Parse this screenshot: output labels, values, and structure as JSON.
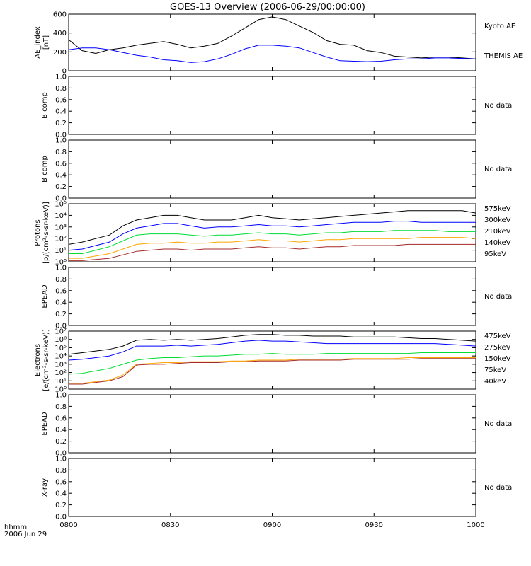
{
  "title": "GOES-13 Overview (2006-06-29/00:00:00)",
  "footer": {
    "line1": "hhmm",
    "line2": "2006 Jun 29"
  },
  "chart_data": [
    {
      "type": "line",
      "panel": "ae",
      "ylabel": [
        "AE_index",
        "[nT]"
      ],
      "yticks": [
        "0",
        "200",
        "400",
        "600"
      ],
      "ylim": [
        0,
        620
      ],
      "x": [
        "0800",
        "0804",
        "0808",
        "0812",
        "0816",
        "0820",
        "0824",
        "0828",
        "0832",
        "0836",
        "0840",
        "0844",
        "0848",
        "0852",
        "0856",
        "0900",
        "0904",
        "0908",
        "0912",
        "0916",
        "0920",
        "0924",
        "0928",
        "0932",
        "0936",
        "0940",
        "0944",
        "0948",
        "0952",
        "0956",
        "1000"
      ],
      "series": [
        {
          "name": "Kyoto AE",
          "color": "#000000",
          "values": [
            340,
            220,
            190,
            230,
            250,
            280,
            300,
            320,
            290,
            250,
            270,
            300,
            380,
            470,
            560,
            590,
            560,
            490,
            420,
            330,
            290,
            280,
            220,
            200,
            160,
            150,
            140,
            150,
            150,
            140,
            130
          ]
        },
        {
          "name": "THEMIS AE",
          "color": "#0000ff",
          "values": [
            230,
            250,
            250,
            230,
            200,
            170,
            150,
            120,
            110,
            90,
            100,
            130,
            180,
            240,
            280,
            280,
            270,
            250,
            200,
            150,
            110,
            105,
            100,
            105,
            120,
            130,
            130,
            140,
            140,
            135,
            130
          ]
        }
      ]
    },
    {
      "type": "line",
      "panel": "bcomp-1",
      "ylabel": [
        "B comp"
      ],
      "yticks": [
        "0.0",
        "0.2",
        "0.4",
        "0.6",
        "0.8",
        "1.0"
      ],
      "ylim": [
        0,
        1
      ],
      "note": "No data"
    },
    {
      "type": "line",
      "panel": "bcomp-2",
      "ylabel": [
        "B comp"
      ],
      "yticks": [
        "0.0",
        "0.2",
        "0.4",
        "0.6",
        "0.8",
        "1.0"
      ],
      "ylim": [
        0,
        1
      ],
      "note": "No data"
    },
    {
      "type": "line",
      "panel": "protons",
      "log": true,
      "ylabel": [
        "Protons",
        "[p/(cm²-s-sr-keV)]"
      ],
      "yticks": [
        "10⁰",
        "10¹",
        "10²",
        "10³",
        "10⁴",
        "10⁵"
      ],
      "ylim_log10": [
        0,
        5
      ],
      "x": [
        "0800",
        "0804",
        "0808",
        "0812",
        "0816",
        "0820",
        "0824",
        "0828",
        "0832",
        "0836",
        "0840",
        "0844",
        "0848",
        "0852",
        "0856",
        "0900",
        "0904",
        "0908",
        "0912",
        "0916",
        "0920",
        "0924",
        "0928",
        "0932",
        "0936",
        "0940",
        "0944",
        "0948",
        "0952",
        "0956",
        "1000"
      ],
      "series": [
        {
          "name": "575keV",
          "color": "#a52a2a",
          "values": [
            0.1,
            0.1,
            0.2,
            0.3,
            0.6,
            0.9,
            1.0,
            1.1,
            1.1,
            1.0,
            1.1,
            1.1,
            1.1,
            1.2,
            1.3,
            1.2,
            1.2,
            1.1,
            1.2,
            1.3,
            1.3,
            1.4,
            1.4,
            1.4,
            1.4,
            1.5,
            1.5,
            1.5,
            1.5,
            1.5,
            1.5
          ]
        },
        {
          "name": "300keV",
          "color": "#ffa500",
          "values": [
            0.3,
            0.3,
            0.5,
            0.7,
            1.1,
            1.5,
            1.6,
            1.6,
            1.7,
            1.6,
            1.6,
            1.7,
            1.7,
            1.8,
            1.9,
            1.8,
            1.8,
            1.7,
            1.8,
            1.9,
            1.9,
            2.0,
            2.0,
            2.0,
            2.0,
            2.0,
            2.1,
            2.1,
            2.1,
            2.1,
            2.0
          ]
        },
        {
          "name": "210keV",
          "color": "#00dd33",
          "values": [
            0.7,
            0.7,
            1.0,
            1.3,
            1.8,
            2.3,
            2.4,
            2.4,
            2.4,
            2.3,
            2.2,
            2.3,
            2.3,
            2.4,
            2.5,
            2.4,
            2.4,
            2.3,
            2.4,
            2.5,
            2.5,
            2.6,
            2.6,
            2.6,
            2.7,
            2.7,
            2.7,
            2.7,
            2.6,
            2.6,
            2.6
          ]
        },
        {
          "name": "140keV",
          "color": "#0000ff",
          "values": [
            1.0,
            1.1,
            1.4,
            1.7,
            2.4,
            2.9,
            3.1,
            3.3,
            3.3,
            3.1,
            2.9,
            3.0,
            3.0,
            3.1,
            3.2,
            3.1,
            3.1,
            3.0,
            3.1,
            3.2,
            3.3,
            3.4,
            3.4,
            3.4,
            3.5,
            3.5,
            3.4,
            3.4,
            3.4,
            3.4,
            3.4
          ]
        },
        {
          "name": "95keV",
          "color": "#000000",
          "values": [
            1.5,
            1.7,
            2.0,
            2.3,
            3.1,
            3.6,
            3.8,
            4.0,
            4.0,
            3.8,
            3.6,
            3.6,
            3.6,
            3.8,
            4.0,
            3.8,
            3.7,
            3.6,
            3.7,
            3.8,
            3.9,
            4.0,
            4.1,
            4.2,
            4.3,
            4.4,
            4.4,
            4.4,
            4.4,
            4.4,
            4.2
          ]
        }
      ]
    },
    {
      "type": "line",
      "panel": "epead-1",
      "ylabel": [
        "EPEAD"
      ],
      "yticks": [
        "0.0",
        "0.2",
        "0.4",
        "0.6",
        "0.8",
        "1.0"
      ],
      "ylim": [
        0,
        1
      ],
      "note": "No data"
    },
    {
      "type": "line",
      "panel": "electrons",
      "log": true,
      "ylabel": [
        "Electrons",
        "[e/(cm²-s-sr-keV)]"
      ],
      "yticks": [
        "10⁰",
        "10¹",
        "10²",
        "10³",
        "10⁴",
        "10⁵",
        "10⁶",
        "10⁷"
      ],
      "ylim_log10": [
        0,
        7
      ],
      "x": [
        "0800",
        "0804",
        "0808",
        "0812",
        "0816",
        "0820",
        "0824",
        "0828",
        "0832",
        "0836",
        "0840",
        "0844",
        "0848",
        "0852",
        "0856",
        "0900",
        "0904",
        "0908",
        "0912",
        "0916",
        "0920",
        "0924",
        "0928",
        "0932",
        "0936",
        "0940",
        "0944",
        "0948",
        "0952",
        "0956",
        "1000"
      ],
      "series": [
        {
          "name": "475keV",
          "color": "#a52a2a",
          "values": [
            0.6,
            0.6,
            0.8,
            1.0,
            1.5,
            2.9,
            3.0,
            3.0,
            3.1,
            3.2,
            3.2,
            3.2,
            3.3,
            3.3,
            3.4,
            3.4,
            3.4,
            3.5,
            3.5,
            3.5,
            3.5,
            3.6,
            3.6,
            3.6,
            3.6,
            3.6,
            3.7,
            3.7,
            3.7,
            3.7,
            3.7
          ]
        },
        {
          "name": "275keV",
          "color": "#ffa500",
          "values": [
            0.7,
            0.7,
            0.9,
            1.1,
            1.7,
            3.0,
            3.1,
            3.2,
            3.2,
            3.3,
            3.3,
            3.3,
            3.4,
            3.4,
            3.5,
            3.5,
            3.5,
            3.6,
            3.6,
            3.6,
            3.6,
            3.7,
            3.7,
            3.7,
            3.7,
            3.8,
            3.8,
            3.8,
            3.8,
            3.8,
            3.8
          ]
        },
        {
          "name": "150keV",
          "color": "#00dd33",
          "values": [
            1.8,
            1.9,
            2.2,
            2.5,
            3.0,
            3.5,
            3.7,
            3.8,
            3.8,
            3.9,
            4.0,
            4.0,
            4.1,
            4.2,
            4.2,
            4.3,
            4.2,
            4.2,
            4.2,
            4.3,
            4.3,
            4.3,
            4.3,
            4.3,
            4.3,
            4.3,
            4.4,
            4.4,
            4.4,
            4.4,
            4.4
          ]
        },
        {
          "name": "75keV",
          "color": "#0000ff",
          "values": [
            3.5,
            3.6,
            3.8,
            4.0,
            4.5,
            5.2,
            5.2,
            5.2,
            5.3,
            5.2,
            5.3,
            5.4,
            5.6,
            5.8,
            5.9,
            5.8,
            5.8,
            5.7,
            5.6,
            5.5,
            5.5,
            5.5,
            5.5,
            5.5,
            5.5,
            5.5,
            5.5,
            5.5,
            5.4,
            5.3,
            5.2
          ]
        },
        {
          "name": "40keV",
          "color": "#000000",
          "values": [
            4.2,
            4.4,
            4.6,
            4.8,
            5.2,
            5.9,
            6.0,
            5.9,
            6.0,
            5.9,
            6.0,
            6.1,
            6.3,
            6.5,
            6.6,
            6.6,
            6.5,
            6.5,
            6.4,
            6.4,
            6.4,
            6.3,
            6.3,
            6.3,
            6.3,
            6.2,
            6.1,
            6.1,
            6.0,
            5.9,
            5.8
          ]
        }
      ]
    },
    {
      "type": "line",
      "panel": "epead-2",
      "ylabel": [
        "EPEAD"
      ],
      "yticks": [
        "0.0",
        "0.2",
        "0.4",
        "0.6",
        "0.8",
        "1.0"
      ],
      "ylim": [
        0,
        1
      ],
      "note": "No data"
    },
    {
      "type": "line",
      "panel": "xray",
      "ylabel": [
        "X-ray"
      ],
      "yticks": [
        "0.0",
        "0.2",
        "0.4",
        "0.6",
        "0.8",
        "1.0"
      ],
      "ylim": [
        0,
        1
      ],
      "note": "No data",
      "xticks": [
        "0800",
        "0830",
        "0900",
        "0930",
        "1000"
      ]
    }
  ]
}
